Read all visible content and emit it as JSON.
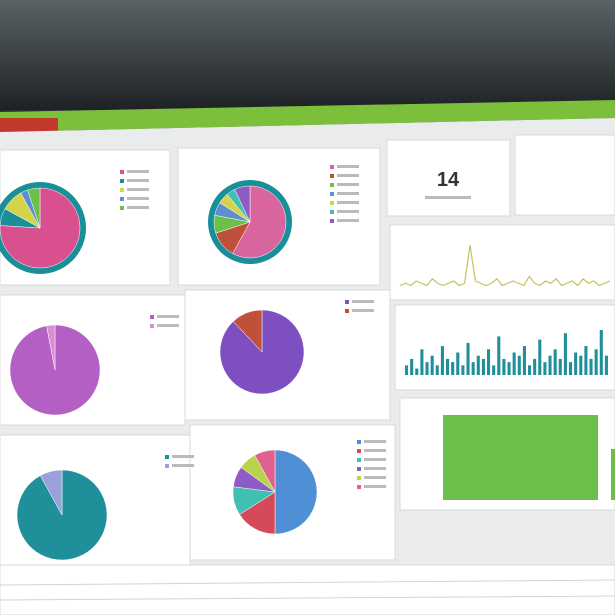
{
  "metric": {
    "value": "14"
  },
  "pies": [
    {
      "colors": [
        "#d9508f",
        "#1a8f9a",
        "#d4d34a",
        "#5b8fd1",
        "#6cc04a"
      ],
      "values": [
        76,
        7,
        9,
        3,
        5
      ]
    },
    {
      "colors": [
        "#d9659e",
        "#c0503a",
        "#6cc04a",
        "#5b8fd1",
        "#d4d34a",
        "#3fc0b0",
        "#8e5cc4"
      ],
      "values": [
        58,
        12,
        8,
        6,
        5,
        4,
        7
      ]
    },
    {
      "colors": [
        "#b35fc4",
        "#d98fd0"
      ],
      "values": [
        97,
        3
      ]
    },
    {
      "colors": [
        "#7e4fc0",
        "#c0503a"
      ],
      "values": [
        88,
        12
      ]
    },
    {
      "colors": [
        "#1f8f9a",
        "#9aa0d9"
      ],
      "values": [
        92,
        8
      ]
    },
    {
      "colors": [
        "#4f8fd6",
        "#d54a5a",
        "#3fc0b0",
        "#8e5cc4",
        "#b7d44a",
        "#e06090"
      ],
      "values": [
        50,
        16,
        11,
        8,
        7,
        8
      ]
    }
  ],
  "line": {
    "color": "#c8c060",
    "values": [
      2,
      3,
      2,
      4,
      3,
      2,
      5,
      3,
      2,
      3,
      4,
      2,
      3,
      20,
      4,
      3,
      2,
      3,
      5,
      2,
      3,
      4,
      3,
      2,
      6,
      3,
      2,
      4,
      3,
      5,
      2,
      3,
      4,
      2,
      5,
      3,
      4,
      2,
      3,
      4
    ]
  },
  "bars": {
    "color": "#1f8f9a",
    "values": [
      3,
      5,
      2,
      8,
      4,
      6,
      3,
      9,
      5,
      4,
      7,
      3,
      10,
      4,
      6,
      5,
      8,
      3,
      12,
      5,
      4,
      7,
      6,
      9,
      3,
      5,
      11,
      4,
      6,
      8,
      5,
      13,
      4,
      7,
      6,
      9,
      5,
      8,
      14,
      6
    ]
  },
  "big_bar": {
    "color": "#6cc04a",
    "values": [
      100,
      60
    ]
  }
}
